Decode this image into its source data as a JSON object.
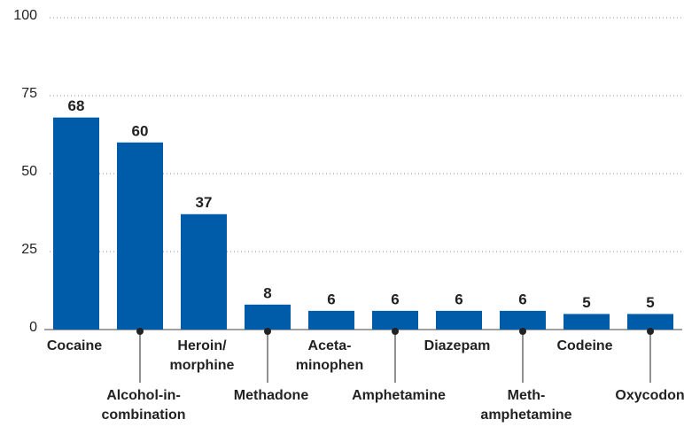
{
  "chart_data": {
    "type": "bar",
    "categories": [
      "Cocaine",
      "Alcohol-in-\ncombination",
      "Heroin/\nmorphine",
      "Methadone",
      "Aceta-\nminophen",
      "Amphetamine",
      "Diazepam",
      "Meth-\namphetamine",
      "Codeine",
      "Oxycodone"
    ],
    "values": [
      68,
      60,
      37,
      8,
      6,
      6,
      6,
      6,
      5,
      5
    ],
    "color": "#005ca8",
    "ylim": [
      0,
      100
    ],
    "yticks": [
      0,
      25,
      50,
      75,
      100
    ],
    "grid": true
  }
}
